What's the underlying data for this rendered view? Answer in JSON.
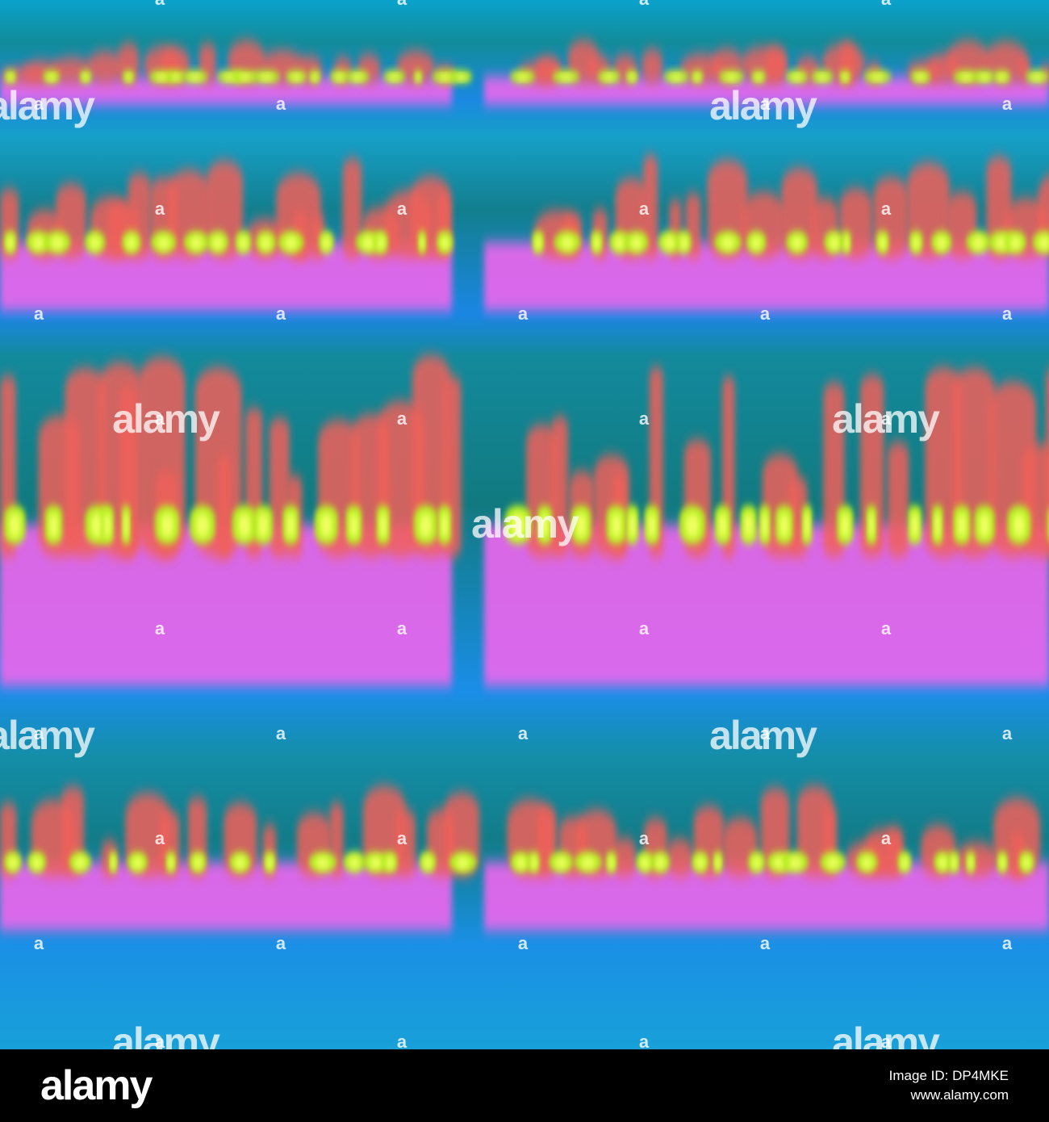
{
  "watermark": {
    "logo": "alamy",
    "mark": "a"
  },
  "footer": {
    "logo": "alamy",
    "image_id": "Image ID: DP4MKE",
    "url": "www.alamy.com"
  }
}
